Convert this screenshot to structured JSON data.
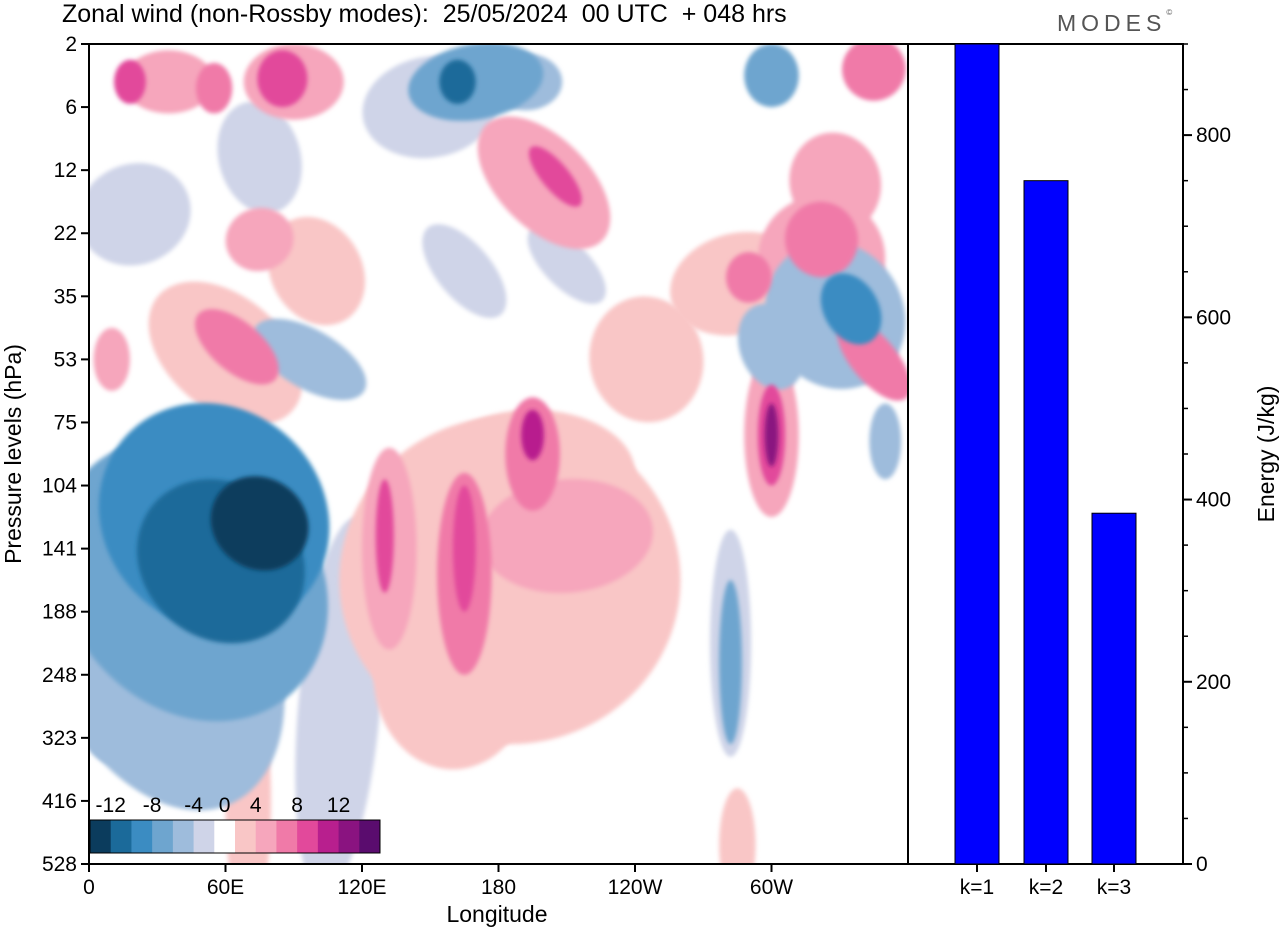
{
  "header": {
    "title": "Zonal wind (non-Rossby modes):  25/05/2024  00 UTC  + 048 hrs",
    "logo": "MODES",
    "logo_mark": "©"
  },
  "chart_data": [
    {
      "type": "heatmap",
      "title": "Zonal wind (non-Rossby modes):  25/05/2024  00 UTC  + 048 hrs",
      "xlabel": "Longitude",
      "ylabel": "Pressure levels (hPa)",
      "x_ticks": [
        "0",
        "60E",
        "120E",
        "180",
        "120W",
        "60W"
      ],
      "x_tick_degrees": [
        0,
        60,
        120,
        180,
        240,
        300
      ],
      "xlim": [
        0,
        360
      ],
      "y_ticks": [
        "2",
        "6",
        "12",
        "22",
        "35",
        "53",
        "75",
        "104",
        "141",
        "188",
        "248",
        "323",
        "416",
        "528"
      ],
      "y_scale": "categorical levels, top to bottom",
      "colorbar": {
        "labels": [
          "-12",
          "-8",
          "-4",
          "0",
          "4",
          "8",
          "12"
        ],
        "bins": [
          {
            "lo": -14,
            "hi": -12,
            "color": "#0b3c5d"
          },
          {
            "lo": -12,
            "hi": -10,
            "color": "#1b6a9a"
          },
          {
            "lo": -10,
            "hi": -8,
            "color": "#3b8cc2"
          },
          {
            "lo": -8,
            "hi": -6,
            "color": "#6ea5cf"
          },
          {
            "lo": -6,
            "hi": -4,
            "color": "#9ebcdc"
          },
          {
            "lo": -4,
            "hi": -2,
            "color": "#cfd4e8"
          },
          {
            "lo": -2,
            "hi": 2,
            "color": "#ffffff"
          },
          {
            "lo": 2,
            "hi": 4,
            "color": "#f9c6c6"
          },
          {
            "lo": 4,
            "hi": 6,
            "color": "#f6a6bc"
          },
          {
            "lo": 6,
            "hi": 8,
            "color": "#f07aa8"
          },
          {
            "lo": 8,
            "hi": 10,
            "color": "#e2499b"
          },
          {
            "lo": 10,
            "hi": 12,
            "color": "#b81f8e"
          },
          {
            "lo": 12,
            "hi": 14,
            "color": "#8a1380"
          },
          {
            "lo": 14,
            "hi": 16,
            "color": "#5a0c6e"
          }
        ]
      },
      "features": [
        {
          "lon": 75,
          "level_index": 7.6,
          "value": -14,
          "rx_deg": 20,
          "ry_levels": 0.8,
          "rot_deg": -55
        },
        {
          "lon": 58,
          "level_index": 8.2,
          "value": -12,
          "rx_deg": 34,
          "ry_levels": 1.4,
          "rot_deg": -50
        },
        {
          "lon": 55,
          "level_index": 7.5,
          "value": -10,
          "rx_deg": 48,
          "ry_levels": 1.9,
          "rot_deg": -48
        },
        {
          "lon": 45,
          "level_index": 8.5,
          "value": -8,
          "rx_deg": 55,
          "ry_levels": 2.4,
          "rot_deg": -40
        },
        {
          "lon": 30,
          "level_index": 9.5,
          "value": -6,
          "rx_deg": 50,
          "ry_levels": 2.8,
          "rot_deg": -25
        },
        {
          "lon": 97,
          "level_index": 5.0,
          "value": -6,
          "rx_deg": 13,
          "ry_levels": 1.0,
          "rot_deg": -60
        },
        {
          "lon": 110,
          "level_index": 10.5,
          "value": -3,
          "rx_deg": 18,
          "ry_levels": 3.0,
          "rot_deg": 5
        },
        {
          "lon": 10,
          "level_index": 9.8,
          "value": -5,
          "rx_deg": 20,
          "ry_levels": 1.6,
          "rot_deg": 0
        },
        {
          "lon": 162,
          "level_index": 0.6,
          "value": -12,
          "rx_deg": 8,
          "ry_levels": 0.35,
          "rot_deg": 0
        },
        {
          "lon": 170,
          "level_index": 0.6,
          "value": -8,
          "rx_deg": 30,
          "ry_levels": 0.6,
          "rot_deg": -10
        },
        {
          "lon": 150,
          "level_index": 1.0,
          "value": -4,
          "rx_deg": 30,
          "ry_levels": 0.8,
          "rot_deg": -10
        },
        {
          "lon": 192,
          "level_index": 0.6,
          "value": -6,
          "rx_deg": 16,
          "ry_levels": 0.45,
          "rot_deg": 0
        },
        {
          "lon": 300,
          "level_index": 0.5,
          "value": -8,
          "rx_deg": 12,
          "ry_levels": 0.5,
          "rot_deg": 0
        },
        {
          "lon": 75,
          "level_index": 1.8,
          "value": -4,
          "rx_deg": 18,
          "ry_levels": 0.9,
          "rot_deg": -15
        },
        {
          "lon": 20,
          "level_index": 2.7,
          "value": -3,
          "rx_deg": 25,
          "ry_levels": 0.8,
          "rot_deg": -20
        },
        {
          "lon": 335,
          "level_index": 4.2,
          "value": -10,
          "rx_deg": 12,
          "ry_levels": 0.6,
          "rot_deg": -30
        },
        {
          "lon": 328,
          "level_index": 4.3,
          "value": -6,
          "rx_deg": 30,
          "ry_levels": 1.2,
          "rot_deg": -30
        },
        {
          "lon": 300,
          "level_index": 4.8,
          "value": -6,
          "rx_deg": 14,
          "ry_levels": 0.7,
          "rot_deg": -20
        },
        {
          "lon": 210,
          "level_index": 3.5,
          "value": -4,
          "rx_deg": 10,
          "ry_levels": 0.8,
          "rot_deg": -45
        },
        {
          "lon": 165,
          "level_index": 3.6,
          "value": -3,
          "rx_deg": 12,
          "ry_levels": 0.9,
          "rot_deg": -40
        },
        {
          "lon": 282,
          "level_index": 9.8,
          "value": -8,
          "rx_deg": 5,
          "ry_levels": 1.3,
          "rot_deg": 0
        },
        {
          "lon": 282,
          "level_index": 9.5,
          "value": -4,
          "rx_deg": 9,
          "ry_levels": 1.8,
          "rot_deg": 0
        },
        {
          "lon": 350,
          "level_index": 6.3,
          "value": -6,
          "rx_deg": 7,
          "ry_levels": 0.6,
          "rot_deg": 0
        },
        {
          "lon": 18,
          "level_index": 0.6,
          "value": 8,
          "rx_deg": 7,
          "ry_levels": 0.35,
          "rot_deg": 0
        },
        {
          "lon": 35,
          "level_index": 0.6,
          "value": 4,
          "rx_deg": 20,
          "ry_levels": 0.5,
          "rot_deg": 0
        },
        {
          "lon": 85,
          "level_index": 0.55,
          "value": 8,
          "rx_deg": 11,
          "ry_levels": 0.45,
          "rot_deg": 0
        },
        {
          "lon": 90,
          "level_index": 0.6,
          "value": 4,
          "rx_deg": 22,
          "ry_levels": 0.6,
          "rot_deg": 0
        },
        {
          "lon": 55,
          "level_index": 0.7,
          "value": 6,
          "rx_deg": 8,
          "ry_levels": 0.4,
          "rot_deg": 0
        },
        {
          "lon": 345,
          "level_index": 0.4,
          "value": 6,
          "rx_deg": 14,
          "ry_levels": 0.5,
          "rot_deg": -20
        },
        {
          "lon": 205,
          "level_index": 2.1,
          "value": 8,
          "rx_deg": 6,
          "ry_levels": 0.6,
          "rot_deg": -40
        },
        {
          "lon": 200,
          "level_index": 2.2,
          "value": 4,
          "rx_deg": 20,
          "ry_levels": 1.3,
          "rot_deg": -45
        },
        {
          "lon": 322,
          "level_index": 3.1,
          "value": 6,
          "rx_deg": 16,
          "ry_levels": 0.6,
          "rot_deg": -15
        },
        {
          "lon": 322,
          "level_index": 3.4,
          "value": 4,
          "rx_deg": 28,
          "ry_levels": 1.0,
          "rot_deg": -20
        },
        {
          "lon": 290,
          "level_index": 3.7,
          "value": 6,
          "rx_deg": 10,
          "ry_levels": 0.4,
          "rot_deg": 0
        },
        {
          "lon": 285,
          "level_index": 3.8,
          "value": 3,
          "rx_deg": 30,
          "ry_levels": 0.8,
          "rot_deg": -15
        },
        {
          "lon": 345,
          "level_index": 5.0,
          "value": 6,
          "rx_deg": 10,
          "ry_levels": 0.8,
          "rot_deg": -40
        },
        {
          "lon": 328,
          "level_index": 2.2,
          "value": 4,
          "rx_deg": 20,
          "ry_levels": 0.8,
          "rot_deg": -15
        },
        {
          "lon": 65,
          "level_index": 4.8,
          "value": 6,
          "rx_deg": 11,
          "ry_levels": 0.8,
          "rot_deg": -50
        },
        {
          "lon": 60,
          "level_index": 4.9,
          "value": 3,
          "rx_deg": 25,
          "ry_levels": 1.4,
          "rot_deg": -50
        },
        {
          "lon": 75,
          "level_index": 3.1,
          "value": 4,
          "rx_deg": 15,
          "ry_levels": 0.5,
          "rot_deg": -15
        },
        {
          "lon": 100,
          "level_index": 3.6,
          "value": 3,
          "rx_deg": 20,
          "ry_levels": 0.9,
          "rot_deg": -30
        },
        {
          "lon": 10,
          "level_index": 5.0,
          "value": 4,
          "rx_deg": 8,
          "ry_levels": 0.5,
          "rot_deg": 0
        },
        {
          "lon": 245,
          "level_index": 5.0,
          "value": 3,
          "rx_deg": 25,
          "ry_levels": 1.0,
          "rot_deg": -10
        },
        {
          "lon": 300,
          "level_index": 6.2,
          "value": 12,
          "rx_deg": 3,
          "ry_levels": 0.5,
          "rot_deg": 0
        },
        {
          "lon": 300,
          "level_index": 6.2,
          "value": 9,
          "rx_deg": 6,
          "ry_levels": 0.8,
          "rot_deg": 0
        },
        {
          "lon": 300,
          "level_index": 6.2,
          "value": 4,
          "rx_deg": 12,
          "ry_levels": 1.3,
          "rot_deg": 0
        },
        {
          "lon": 195,
          "level_index": 6.2,
          "value": 10,
          "rx_deg": 5,
          "ry_levels": 0.4,
          "rot_deg": 0
        },
        {
          "lon": 195,
          "level_index": 6.5,
          "value": 6,
          "rx_deg": 12,
          "ry_levels": 0.9,
          "rot_deg": 0
        },
        {
          "lon": 210,
          "level_index": 7.8,
          "value": 5,
          "rx_deg": 38,
          "ry_levels": 0.9,
          "rot_deg": -5
        },
        {
          "lon": 165,
          "level_index": 8.0,
          "value": 8,
          "rx_deg": 5,
          "ry_levels": 1.0,
          "rot_deg": 0
        },
        {
          "lon": 165,
          "level_index": 8.4,
          "value": 6,
          "rx_deg": 12,
          "ry_levels": 1.6,
          "rot_deg": 0
        },
        {
          "lon": 130,
          "level_index": 7.8,
          "value": 8,
          "rx_deg": 4,
          "ry_levels": 0.9,
          "rot_deg": 0
        },
        {
          "lon": 132,
          "level_index": 8.0,
          "value": 5,
          "rx_deg": 12,
          "ry_levels": 1.6,
          "rot_deg": 0
        },
        {
          "lon": 185,
          "level_index": 8.5,
          "value": 3,
          "rx_deg": 75,
          "ry_levels": 2.6,
          "rot_deg": 0
        },
        {
          "lon": 195,
          "level_index": 6.8,
          "value": 3,
          "rx_deg": 45,
          "ry_levels": 1.0,
          "rot_deg": 0
        },
        {
          "lon": 160,
          "level_index": 10.0,
          "value": 3,
          "rx_deg": 35,
          "ry_levels": 1.5,
          "rot_deg": 0
        },
        {
          "lon": 70,
          "level_index": 12.0,
          "value": 3,
          "rx_deg": 10,
          "ry_levels": 2.0,
          "rot_deg": 0
        },
        {
          "lon": 285,
          "level_index": 12.7,
          "value": 3,
          "rx_deg": 8,
          "ry_levels": 0.9,
          "rot_deg": 0
        },
        {
          "lon": 15,
          "level_index": 7.3,
          "value": 3,
          "rx_deg": 10,
          "ry_levels": 0.6,
          "rot_deg": -20
        }
      ]
    },
    {
      "type": "bar",
      "categories": [
        "k=1",
        "k=2",
        "k=3"
      ],
      "values": [
        900,
        750,
        385
      ],
      "ylabel": "Energy (J/kg)",
      "ylim": [
        0,
        900
      ],
      "y_ticks": [
        "0",
        "200",
        "400",
        "600",
        "800"
      ],
      "bar_color": "#0000ff"
    }
  ]
}
